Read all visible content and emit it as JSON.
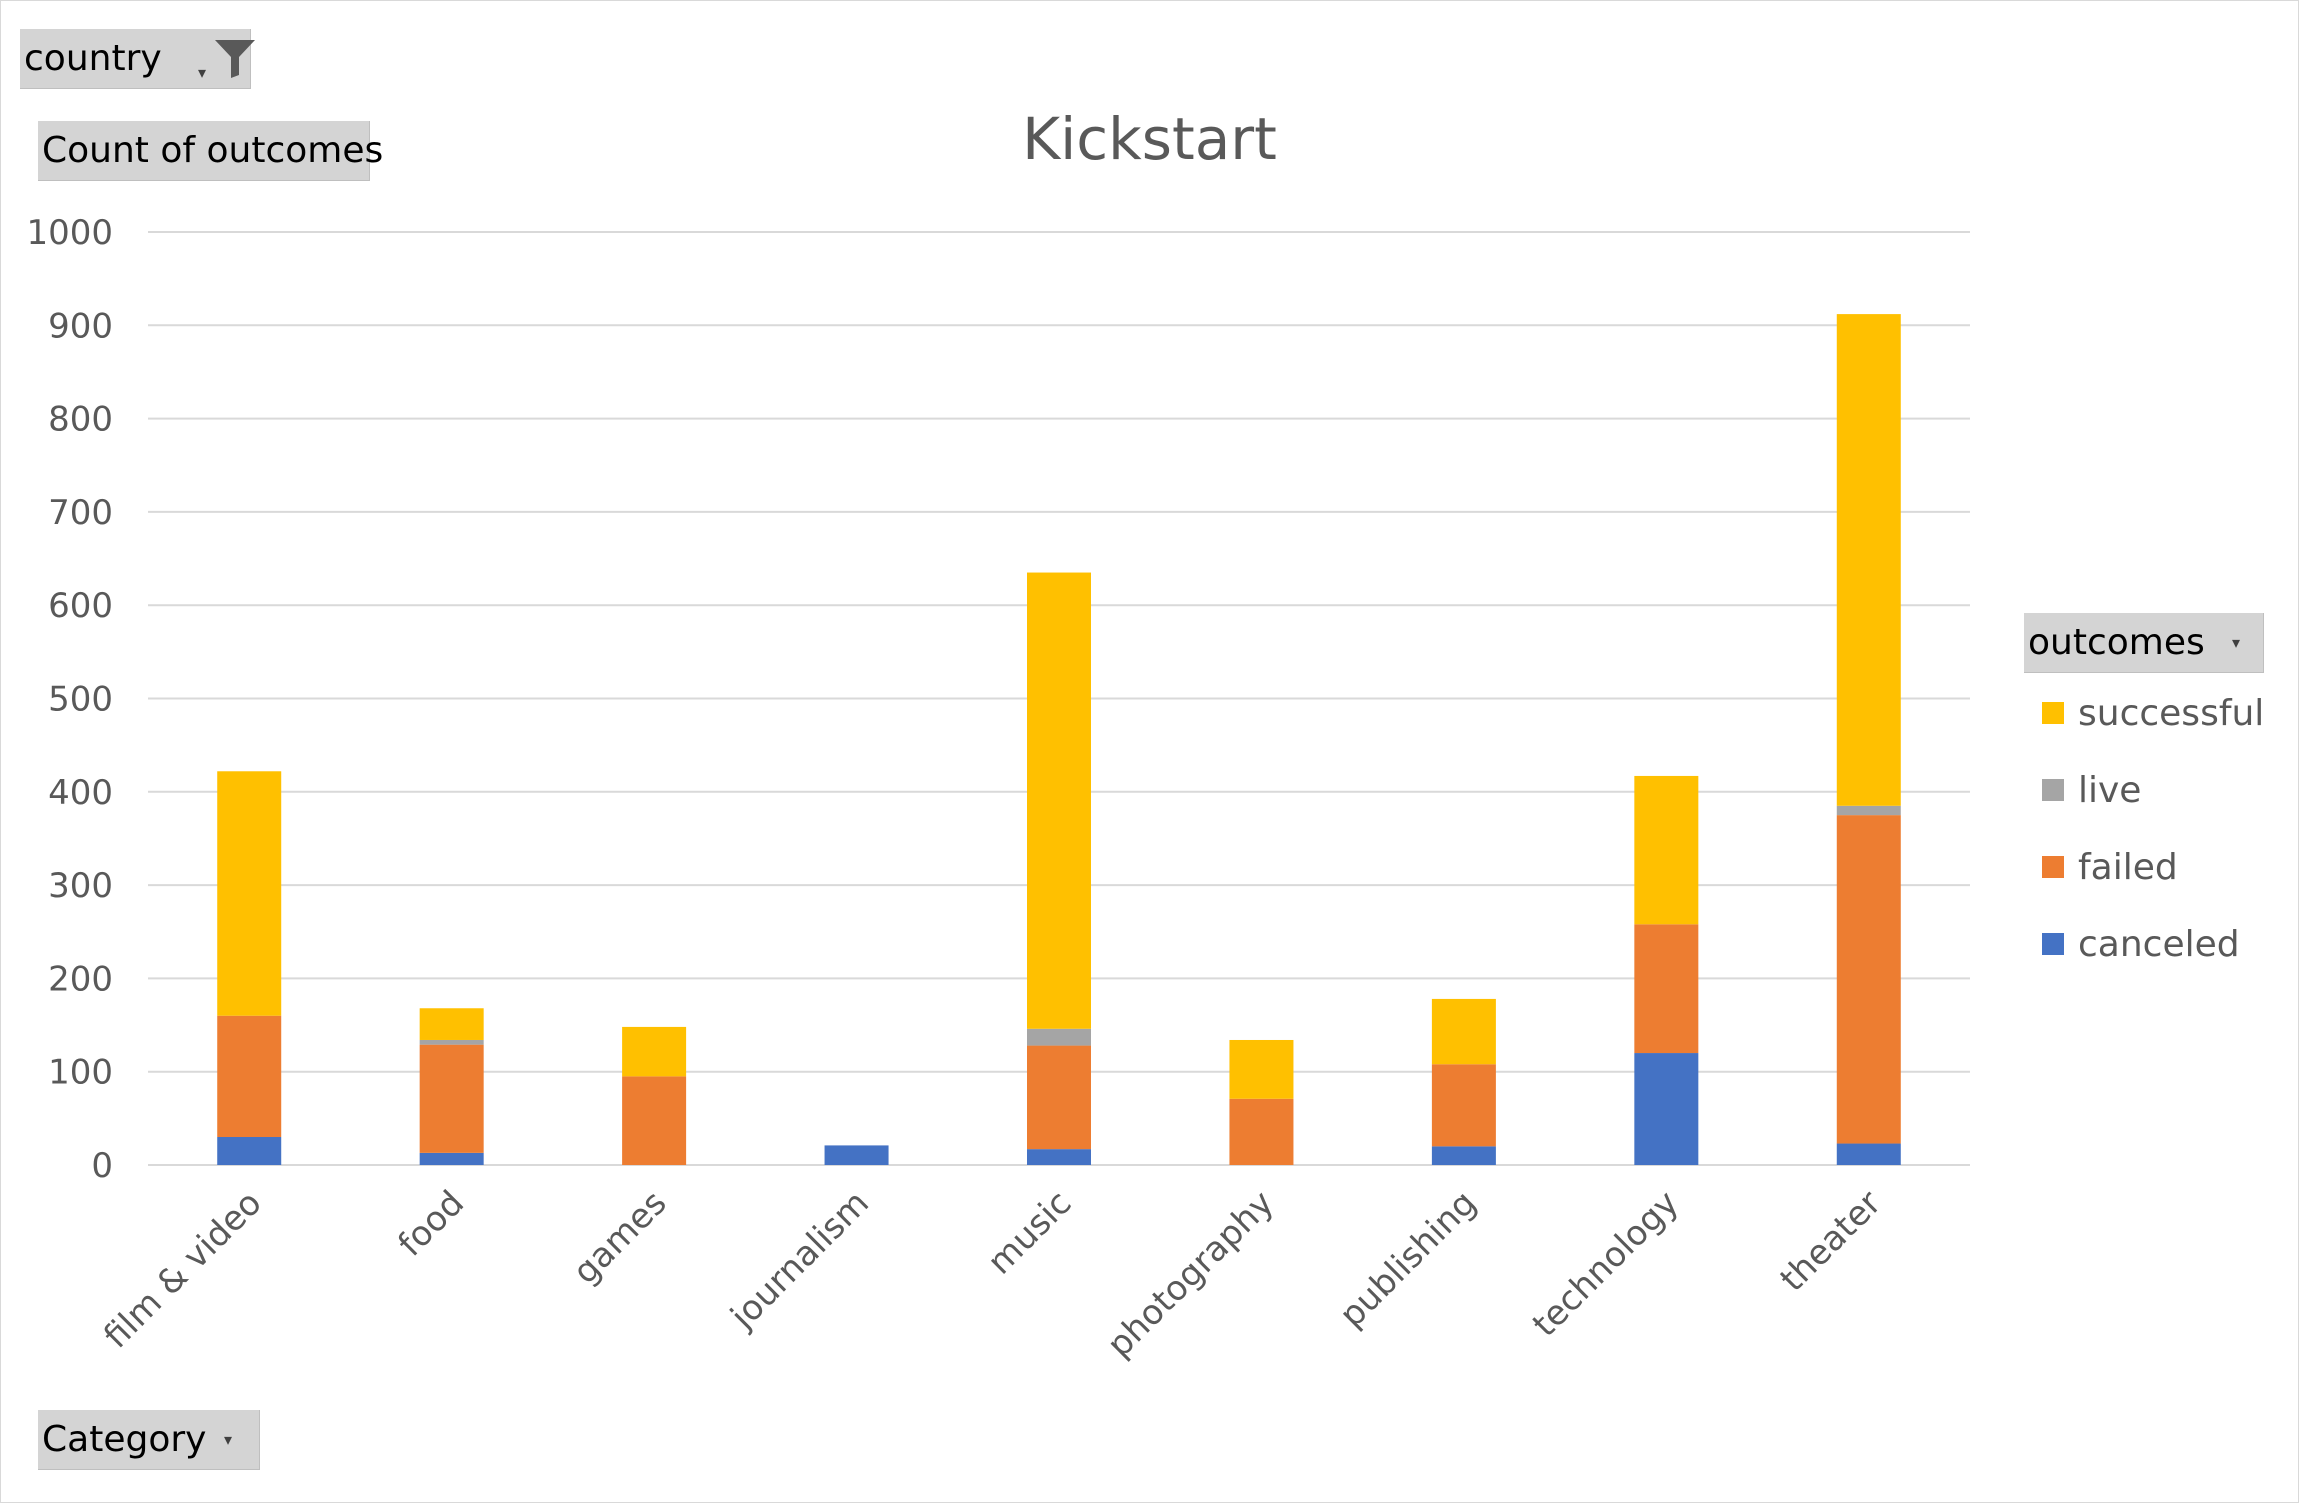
{
  "filter": {
    "label": "country",
    "icon": "filter-icon",
    "arrow_icon": "dropdown-arrow-icon"
  },
  "value_field": {
    "label": "Count of outcomes"
  },
  "axis_field": {
    "label": "Category",
    "arrow_icon": "dropdown-arrow-icon"
  },
  "legend_field": {
    "label": "outcomes",
    "arrow_icon": "dropdown-arrow-icon"
  },
  "colors": {
    "successful": "#FFC000",
    "live": "#A5A5A5",
    "failed": "#ED7D31",
    "canceled": "#4472C4",
    "gridline": "#D9D9D9",
    "axis_text": "#595959"
  },
  "chart_data": {
    "type": "bar",
    "stacked": true,
    "title": "Kickstart",
    "xlabel": "",
    "ylabel": "",
    "ylim": [
      0,
      1000
    ],
    "yticks": [
      0,
      100,
      200,
      300,
      400,
      500,
      600,
      700,
      800,
      900,
      1000
    ],
    "grid": true,
    "legend_position": "right",
    "categories": [
      "film & video",
      "food",
      "games",
      "journalism",
      "music",
      "photography",
      "publishing",
      "technology",
      "theater"
    ],
    "series": [
      {
        "name": "canceled",
        "values": [
          30,
          13,
          0,
          21,
          17,
          0,
          20,
          120,
          23
        ]
      },
      {
        "name": "failed",
        "values": [
          130,
          116,
          95,
          0,
          111,
          71,
          88,
          138,
          352
        ]
      },
      {
        "name": "live",
        "values": [
          0,
          5,
          0,
          0,
          18,
          0,
          0,
          0,
          10
        ]
      },
      {
        "name": "successful",
        "values": [
          262,
          34,
          53,
          0,
          489,
          63,
          70,
          159,
          527
        ]
      }
    ]
  }
}
